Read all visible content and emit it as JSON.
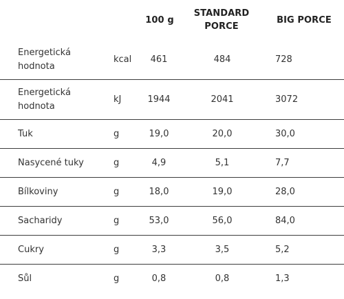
{
  "header": {
    "per_100g": "100 g",
    "standard": "STANDARD\nPORCE",
    "big": "BIG PORCE"
  },
  "rows": [
    {
      "name": "Energetická\nhodnota",
      "unit": "kcal",
      "per_100g": "461",
      "standard": "484",
      "big": "728"
    },
    {
      "name": "Energetická\nhodnota",
      "unit": "kJ",
      "per_100g": "1944",
      "standard": "2041",
      "big": "3072"
    },
    {
      "name": "Tuk",
      "unit": "g",
      "per_100g": "19,0",
      "standard": "20,0",
      "big": "30,0"
    },
    {
      "name": "Nasycené tuky",
      "unit": "g",
      "per_100g": "4,9",
      "standard": "5,1",
      "big": "7,7"
    },
    {
      "name": "Bílkoviny",
      "unit": "g",
      "per_100g": "18,0",
      "standard": "19,0",
      "big": "28,0"
    },
    {
      "name": "Sacharidy",
      "unit": "g",
      "per_100g": "53,0",
      "standard": "56,0",
      "big": "84,0"
    },
    {
      "name": "Cukry",
      "unit": "g",
      "per_100g": "3,3",
      "standard": "3,5",
      "big": "5,2"
    },
    {
      "name": "Sůl",
      "unit": "g",
      "per_100g": "0,8",
      "standard": "0,8",
      "big": "1,3"
    }
  ]
}
